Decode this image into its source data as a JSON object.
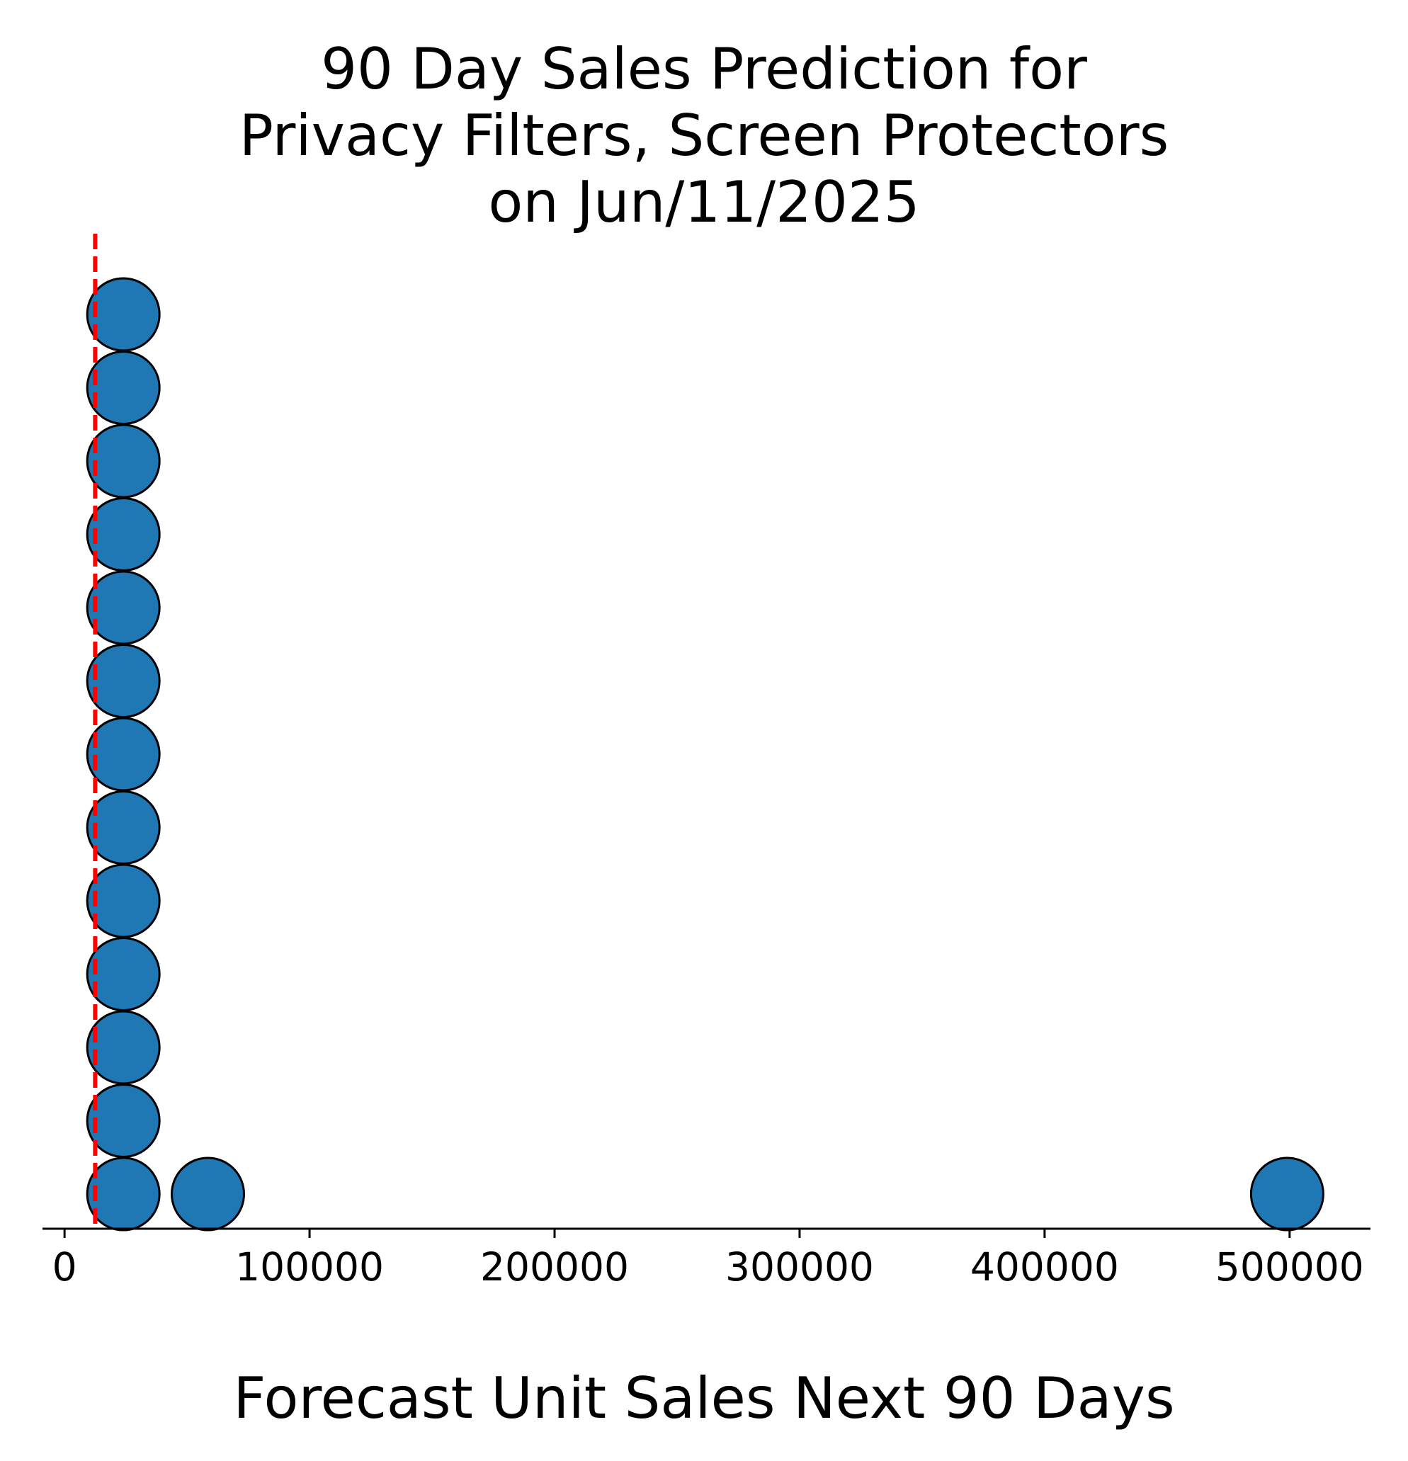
{
  "chart_data": {
    "type": "scatter",
    "title_lines": [
      "90 Day Sales Prediction for",
      "Privacy Filters, Screen Protectors",
      "on Jun/11/2025"
    ],
    "xlabel": "Forecast Unit Sales Next 90 Days",
    "ylabel": "",
    "xlim": [
      -9000,
      533000
    ],
    "xticks": [
      0,
      100000,
      200000,
      300000,
      400000,
      500000
    ],
    "xtick_labels": [
      "0",
      "100000",
      "200000",
      "300000",
      "400000",
      "500000"
    ],
    "grid": false,
    "legend": "none",
    "y_axis_visible": false,
    "reference_line": {
      "x": 12500,
      "style": "dashed",
      "color": "#ff0000"
    },
    "points": [
      {
        "x": 24000,
        "y": 1
      },
      {
        "x": 24000,
        "y": 2
      },
      {
        "x": 24000,
        "y": 3
      },
      {
        "x": 24000,
        "y": 4
      },
      {
        "x": 24000,
        "y": 5
      },
      {
        "x": 24000,
        "y": 6
      },
      {
        "x": 24000,
        "y": 7
      },
      {
        "x": 24000,
        "y": 8
      },
      {
        "x": 24000,
        "y": 9
      },
      {
        "x": 24000,
        "y": 10
      },
      {
        "x": 24000,
        "y": 11
      },
      {
        "x": 24000,
        "y": 12
      },
      {
        "x": 24000,
        "y": 13
      },
      {
        "x": 58500,
        "y": 1
      },
      {
        "x": 499000,
        "y": 1
      }
    ],
    "marker_color": "#1f77b4",
    "marker_edge_color": "#000000"
  }
}
